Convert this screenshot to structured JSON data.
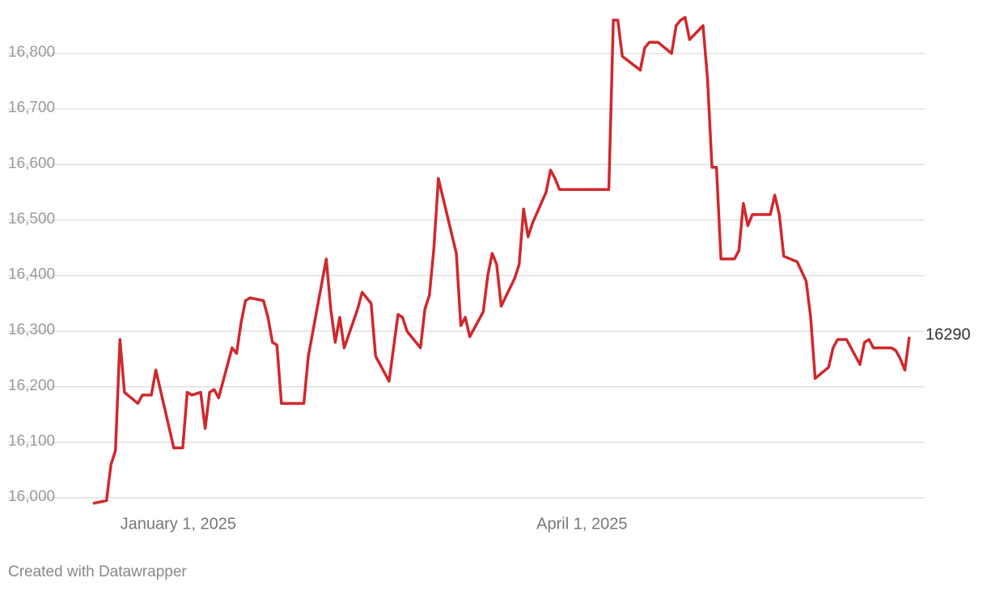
{
  "chart_data": {
    "type": "line",
    "x": [
      "2024-12-13",
      "2024-12-16",
      "2024-12-17",
      "2024-12-18",
      "2024-12-19",
      "2024-12-20",
      "2024-12-23",
      "2024-12-24",
      "2024-12-26",
      "2024-12-27",
      "2024-12-30",
      "2024-12-31",
      "2025-01-02",
      "2025-01-03",
      "2025-01-04",
      "2025-01-06",
      "2025-01-07",
      "2025-01-08",
      "2025-01-09",
      "2025-01-10",
      "2025-01-13",
      "2025-01-14",
      "2025-01-15",
      "2025-01-16",
      "2025-01-17",
      "2025-01-20",
      "2025-01-21",
      "2025-01-22",
      "2025-01-23",
      "2025-01-24",
      "2025-01-29",
      "2025-01-30",
      "2025-02-03",
      "2025-02-04",
      "2025-02-05",
      "2025-02-06",
      "2025-02-07",
      "2025-02-10",
      "2025-02-11",
      "2025-02-13",
      "2025-02-14",
      "2025-02-17",
      "2025-02-19",
      "2025-02-20",
      "2025-02-21",
      "2025-02-24",
      "2025-02-25",
      "2025-02-26",
      "2025-02-27",
      "2025-02-28",
      "2025-03-04",
      "2025-03-05",
      "2025-03-06",
      "2025-03-07",
      "2025-03-10",
      "2025-03-11",
      "2025-03-12",
      "2025-03-13",
      "2025-03-14",
      "2025-03-17",
      "2025-03-18",
      "2025-03-19",
      "2025-03-20",
      "2025-03-21",
      "2025-03-24",
      "2025-03-25",
      "2025-03-26",
      "2025-03-27",
      "2025-04-07",
      "2025-04-08",
      "2025-04-09",
      "2025-04-10",
      "2025-04-14",
      "2025-04-15",
      "2025-04-16",
      "2025-04-18",
      "2025-04-21",
      "2025-04-22",
      "2025-04-23",
      "2025-04-24",
      "2025-04-25",
      "2025-04-28",
      "2025-04-29",
      "2025-04-30",
      "2025-05-01",
      "2025-05-02",
      "2025-05-05",
      "2025-05-06",
      "2025-05-07",
      "2025-05-08",
      "2025-05-09",
      "2025-05-13",
      "2025-05-14",
      "2025-05-15",
      "2025-05-16",
      "2025-05-19",
      "2025-05-21",
      "2025-05-22",
      "2025-05-23",
      "2025-05-26",
      "2025-05-27",
      "2025-05-28",
      "2025-05-30",
      "2025-06-02",
      "2025-06-03",
      "2025-06-04",
      "2025-06-05",
      "2025-06-09",
      "2025-06-10",
      "2025-06-11",
      "2025-06-12",
      "2025-06-13"
    ],
    "series": [
      {
        "color": "#d0282c",
        "values": [
          15990,
          15995,
          16060,
          16085,
          16285,
          16190,
          16170,
          16185,
          16185,
          16230,
          16125,
          16090,
          16090,
          16190,
          16185,
          16190,
          16125,
          16190,
          16195,
          16180,
          16270,
          16260,
          16315,
          16355,
          16360,
          16355,
          16325,
          16280,
          16275,
          16170,
          16170,
          16255,
          16430,
          16340,
          16280,
          16325,
          16270,
          16340,
          16370,
          16350,
          16255,
          16210,
          16330,
          16325,
          16300,
          16270,
          16340,
          16365,
          16450,
          16575,
          16440,
          16310,
          16325,
          16290,
          16335,
          16400,
          16440,
          16420,
          16345,
          16395,
          16420,
          16520,
          16470,
          16495,
          16550,
          16590,
          16575,
          16555,
          16555,
          16860,
          16860,
          16795,
          16770,
          16810,
          16820,
          16820,
          16800,
          16850,
          16860,
          16865,
          16825,
          16850,
          16755,
          16595,
          16595,
          16430,
          16430,
          16445,
          16530,
          16490,
          16510,
          16510,
          16545,
          16510,
          16435,
          16425,
          16390,
          16325,
          16215,
          16235,
          16270,
          16285,
          16285,
          16240,
          16280,
          16285,
          16270,
          16270,
          16265,
          16250,
          16230,
          16290
        ]
      }
    ],
    "xlim": [
      "2024-12-13",
      "2025-06-13"
    ],
    "xticks": [
      {
        "value": "2025-01-01",
        "label": "January 1, 2025"
      },
      {
        "value": "2025-04-01",
        "label": "April 1, 2025"
      }
    ],
    "ylim": [
      15980,
      16870
    ],
    "yticks": [
      {
        "value": 16000,
        "label": "16,000"
      },
      {
        "value": 16100,
        "label": "16,100"
      },
      {
        "value": 16200,
        "label": "16,200"
      },
      {
        "value": 16300,
        "label": "16,300"
      },
      {
        "value": 16400,
        "label": "16,400"
      },
      {
        "value": 16500,
        "label": "16,500"
      },
      {
        "value": 16600,
        "label": "16,600"
      },
      {
        "value": 16700,
        "label": "16,700"
      },
      {
        "value": 16800,
        "label": "16,800"
      }
    ],
    "grid": true,
    "footer": "Created with Datawrapper"
  }
}
